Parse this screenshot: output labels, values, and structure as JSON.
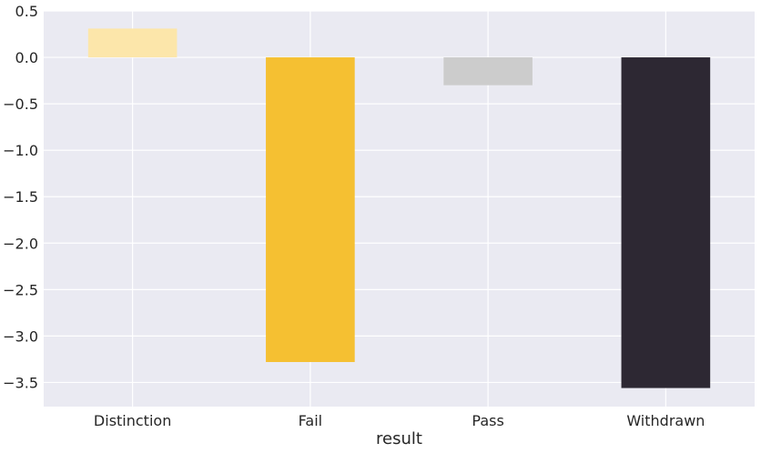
{
  "chart_data": {
    "type": "bar",
    "categories": [
      "Distinction",
      "Fail",
      "Pass",
      "Withdrawn"
    ],
    "values": [
      0.31,
      -3.28,
      -0.3,
      -3.56
    ],
    "colors": [
      "#fce6aa",
      "#f5c032",
      "#cccccc",
      "#2d2833"
    ],
    "xlabel": "result",
    "ylabel": "",
    "ylim": [
      -3.76,
      0.5
    ],
    "yticks": [
      0.5,
      0.0,
      -0.5,
      -1.0,
      -1.5,
      -2.0,
      -2.5,
      -3.0,
      -3.5
    ],
    "ytick_labels": [
      "0.5",
      "0.0",
      "−0.5",
      "−1.0",
      "−1.5",
      "−2.0",
      "−2.5",
      "−3.0",
      "−3.5"
    ],
    "grid": true,
    "background": "#eaeaf2",
    "grid_color": "#ffffff"
  }
}
